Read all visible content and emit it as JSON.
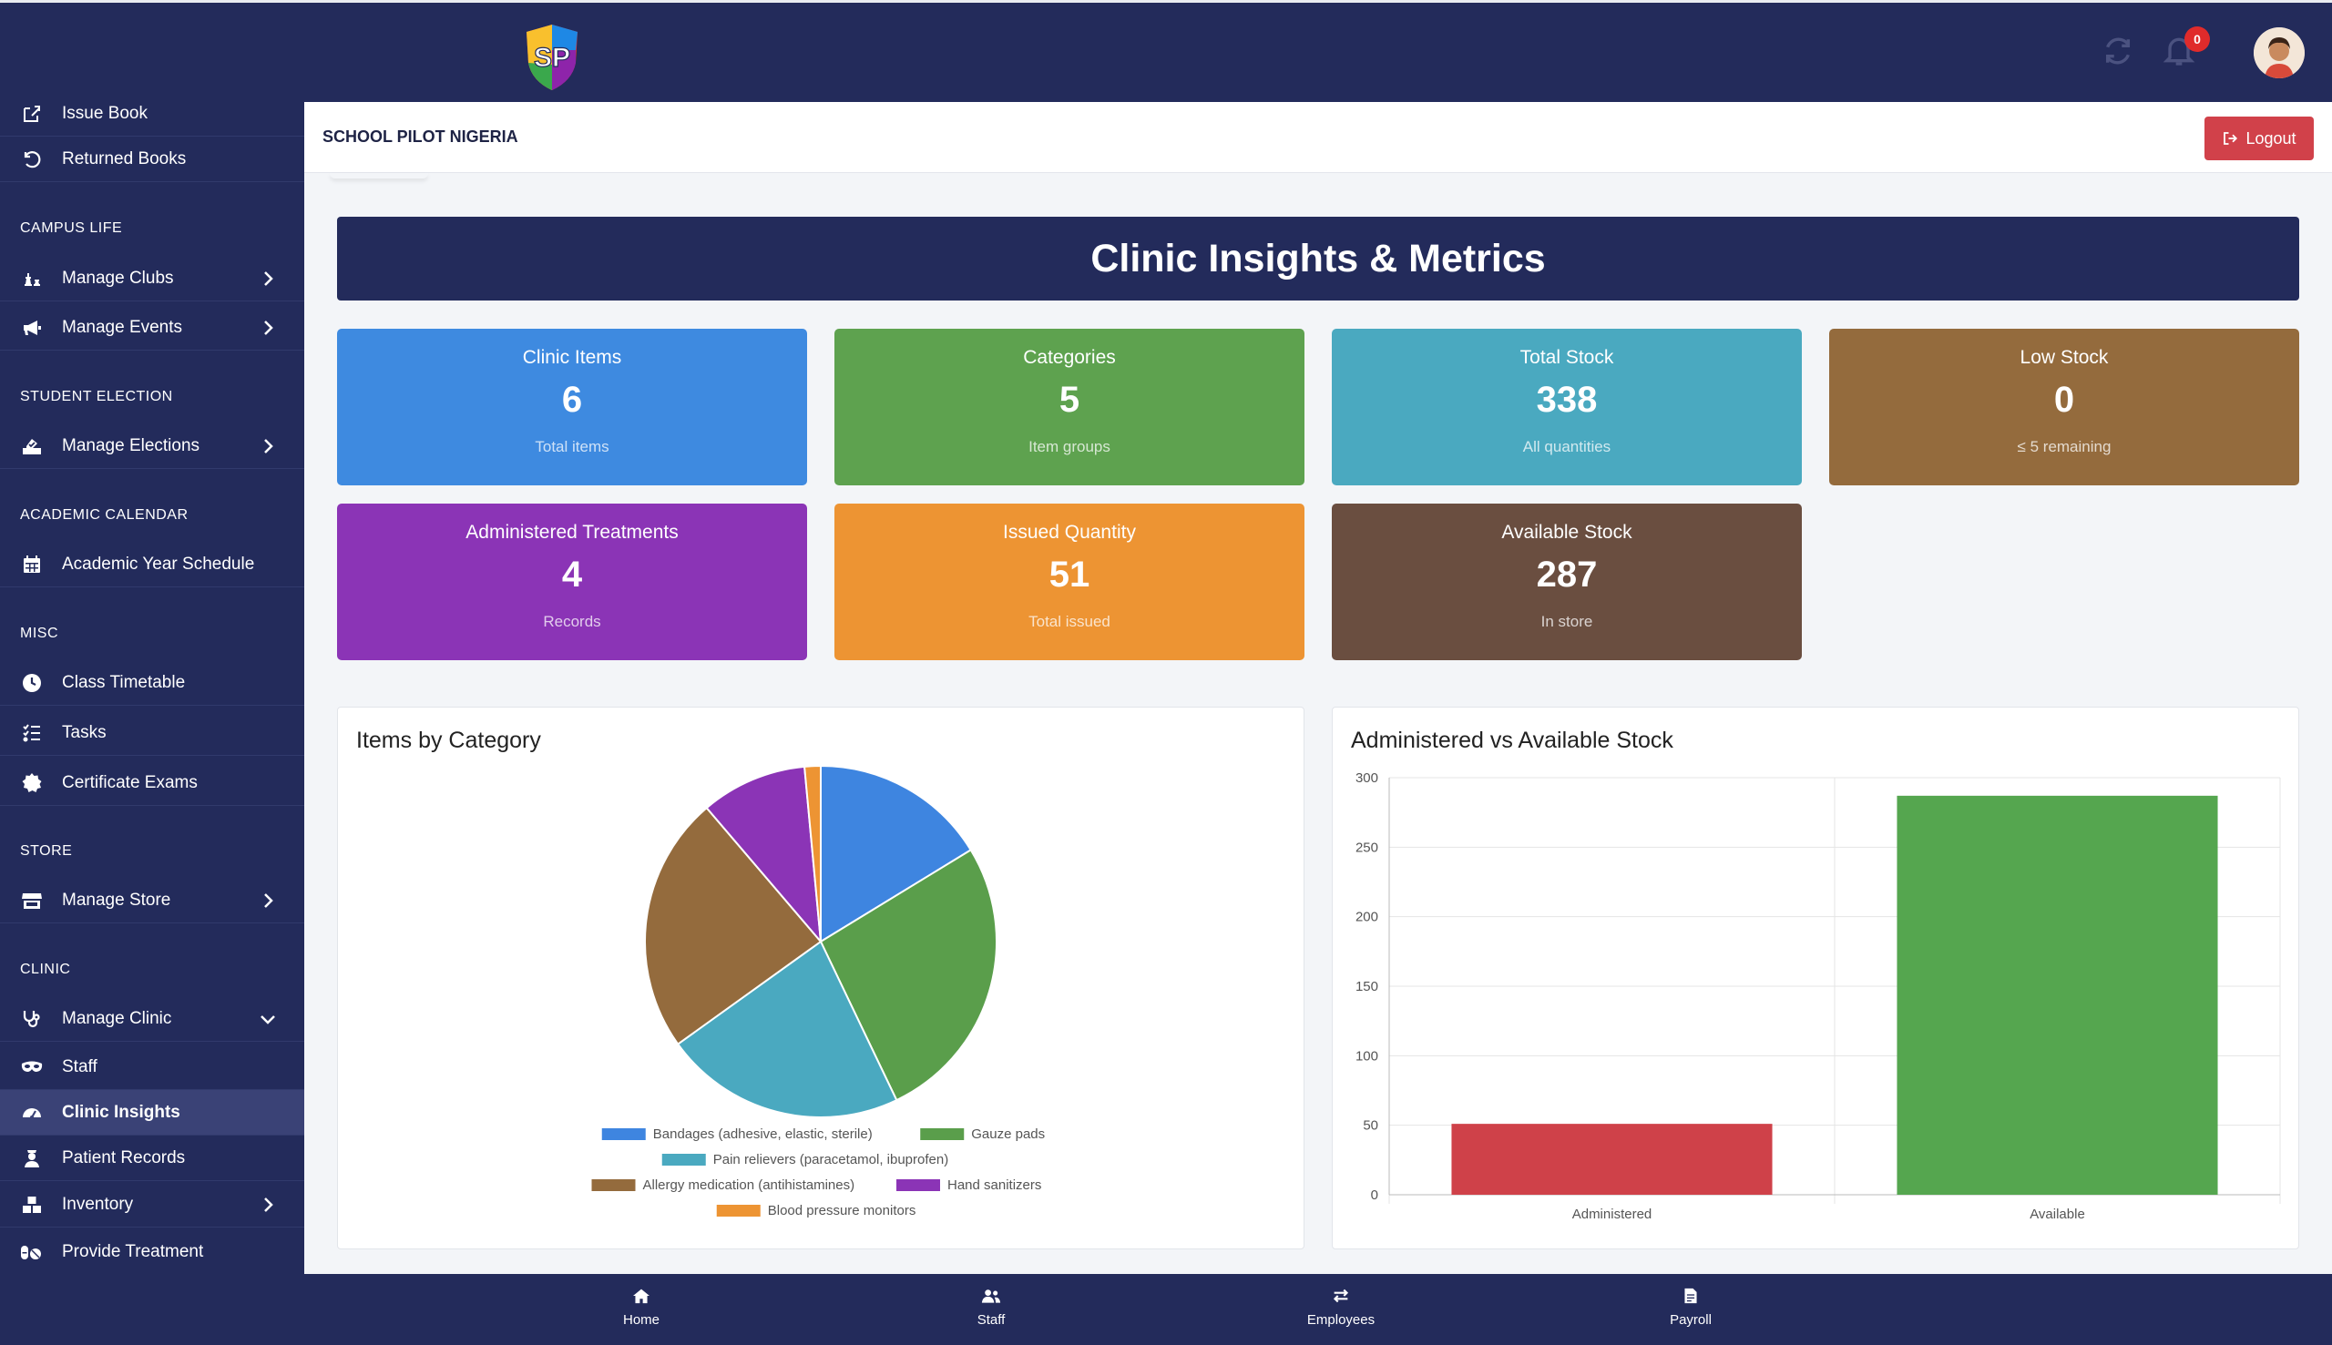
{
  "app": {
    "school_name": "SCHOOL PILOT NIGERIA",
    "logo_text": "SP",
    "logout_label": "Logout",
    "notification_count": "0"
  },
  "sidebar": {
    "items_top": [
      {
        "label": "Issue Book",
        "icon": "edit-icon"
      },
      {
        "label": "Returned Books",
        "icon": "undo-icon"
      }
    ],
    "sections": [
      {
        "title": "CAMPUS LIFE",
        "items": [
          {
            "label": "Manage Clubs",
            "icon": "chess-icon",
            "chevron": "right"
          },
          {
            "label": "Manage Events",
            "icon": "bullhorn-icon",
            "chevron": "right"
          }
        ]
      },
      {
        "title": "STUDENT ELECTION",
        "items": [
          {
            "label": "Manage Elections",
            "icon": "vote-icon",
            "chevron": "right"
          }
        ]
      },
      {
        "title": "ACADEMIC CALENDAR",
        "items": [
          {
            "label": "Academic Year Schedule",
            "icon": "calendar-icon"
          }
        ]
      },
      {
        "title": "MISC",
        "items": [
          {
            "label": "Class Timetable",
            "icon": "clock-icon"
          },
          {
            "label": "Tasks",
            "icon": "tasks-icon"
          },
          {
            "label": "Certificate Exams",
            "icon": "certificate-icon"
          }
        ]
      },
      {
        "title": "STORE",
        "items": [
          {
            "label": "Manage Store",
            "icon": "store-icon",
            "chevron": "right"
          }
        ]
      },
      {
        "title": "CLINIC",
        "items": [
          {
            "label": "Manage Clinic",
            "icon": "stethoscope-icon",
            "chevron": "down"
          },
          {
            "label": "Staff",
            "icon": "mask-icon"
          },
          {
            "label": "Clinic Insights",
            "icon": "gauge-icon",
            "active": true
          },
          {
            "label": "Patient Records",
            "icon": "user-nurse-icon"
          },
          {
            "label": "Inventory",
            "icon": "boxes-icon",
            "chevron": "right"
          },
          {
            "label": "Provide Treatment",
            "icon": "pills-icon"
          }
        ]
      }
    ]
  },
  "page": {
    "title": "Clinic Insights & Metrics"
  },
  "cards": [
    {
      "title": "Clinic Items",
      "value": "6",
      "sub": "Total items",
      "color": "#3e8ae0"
    },
    {
      "title": "Categories",
      "value": "5",
      "sub": "Item groups",
      "color": "#5ea24f"
    },
    {
      "title": "Total Stock",
      "value": "338",
      "sub": "All quantities",
      "color": "#4aa9c0"
    },
    {
      "title": "Low Stock",
      "value": "0",
      "sub": "≤ 5 remaining",
      "color": "#946b3d"
    },
    {
      "title": "Administered Treatments",
      "value": "4",
      "sub": "Records",
      "color": "#8b34b6"
    },
    {
      "title": "Issued Quantity",
      "value": "51",
      "sub": "Total issued",
      "color": "#ed9433"
    },
    {
      "title": "Available Stock",
      "value": "287",
      "sub": "In store",
      "color": "#6a4e40"
    }
  ],
  "chart_data": [
    {
      "type": "pie",
      "title": "Items by Category",
      "categories": [
        "Bandages (adhesive, elastic, sterile)",
        "Gauze pads",
        "Pain relievers (paracetamol, ibuprofen)",
        "Allergy medication (antihistamines)",
        "Hand sanitizers",
        "Blood pressure monitors"
      ],
      "values": [
        55,
        90,
        75,
        80,
        33,
        5
      ],
      "colors": [
        "#3e85e0",
        "#5a9e4b",
        "#4aa9c0",
        "#946b3d",
        "#8b34b6",
        "#ed9433"
      ],
      "legend": "bottom"
    },
    {
      "type": "bar",
      "title": "Administered vs Available Stock",
      "categories": [
        "Administered",
        "Available"
      ],
      "values": [
        51,
        287
      ],
      "colors": [
        "#cf4149",
        "#55a64f"
      ],
      "ylim": [
        0,
        300
      ],
      "yticks": [
        0,
        50,
        100,
        150,
        200,
        250,
        300
      ],
      "grid": true
    }
  ],
  "bottomnav": [
    {
      "label": "Home",
      "icon": "home-icon"
    },
    {
      "label": "Staff",
      "icon": "users-icon"
    },
    {
      "label": "Employees",
      "icon": "exchange-icon"
    },
    {
      "label": "Payroll",
      "icon": "file-invoice-icon"
    }
  ]
}
